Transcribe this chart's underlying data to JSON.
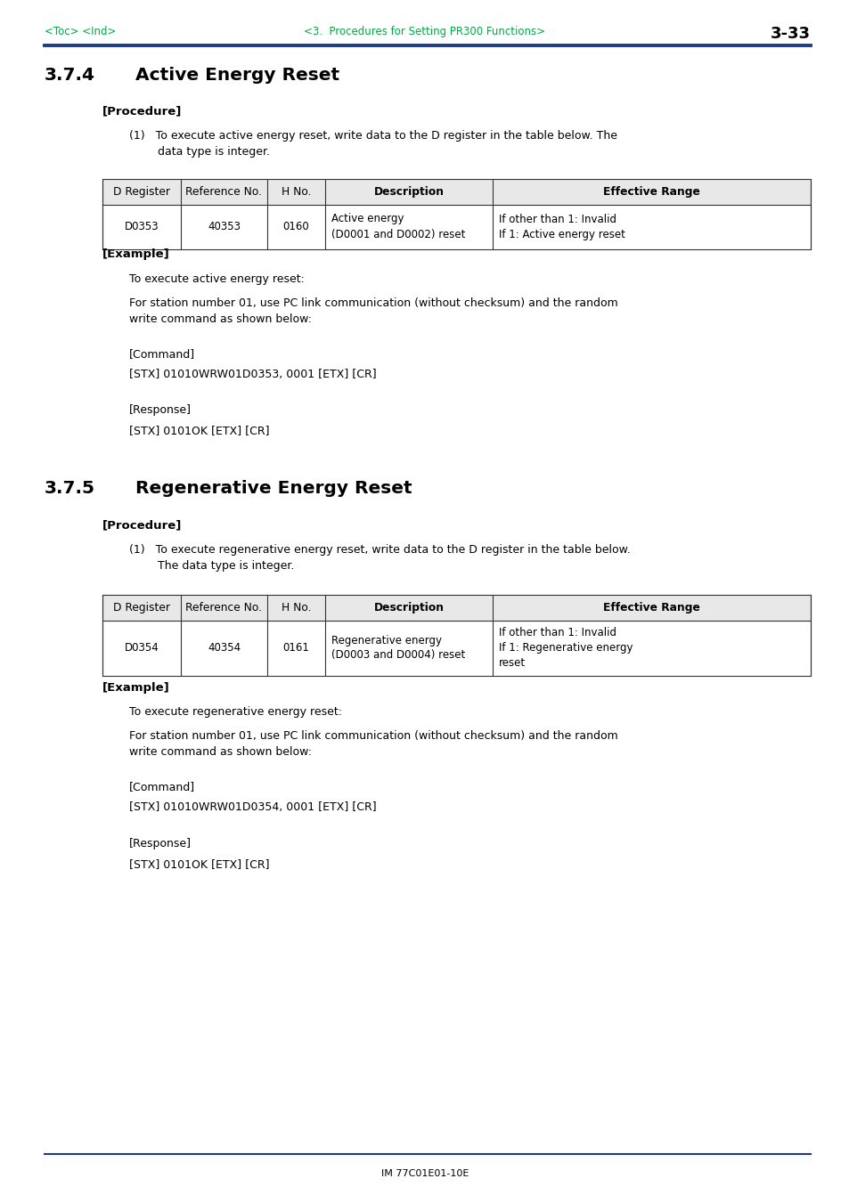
{
  "page_bg": "#ffffff",
  "header_line_color": "#1e3a8a",
  "header_text_color": "#00aa44",
  "header_left": "<Toc> <Ind>",
  "header_center": "<3.  Procedures for Setting PR300 Functions>",
  "header_right": "3-33",
  "footer_line_color": "#1e3a8a",
  "footer_text": "IM 77C01E01-10E",
  "section1_number": "3.7.4",
  "section1_title": "Active Energy Reset",
  "section1_procedure_label": "[Procedure]",
  "table1_headers": [
    "D Register",
    "Reference No.",
    "H No.",
    "Description",
    "Effective Range"
  ],
  "table1_row": [
    "D0353",
    "40353",
    "0160",
    "Active energy\n(D0001 and D0002) reset",
    "If other than 1: Invalid\nIf 1: Active energy reset"
  ],
  "section1_example_label": "[Example]",
  "section1_example_line1": "To execute active energy reset:",
  "section1_example_line2": "For station number 01, use PC link communication (without checksum) and the random\nwrite command as shown below:",
  "section1_command_label": "[Command]",
  "section1_command": "[STX] 01010WRW01D0353, 0001 [ETX] [CR]",
  "section1_response_label": "[Response]",
  "section1_response": "[STX] 0101OK [ETX] [CR]",
  "section2_number": "3.7.5",
  "section2_title": "Regenerative Energy Reset",
  "section2_procedure_label": "[Procedure]",
  "table2_headers": [
    "D Register",
    "Reference No.",
    "H No.",
    "Description",
    "Effective Range"
  ],
  "table2_row": [
    "D0354",
    "40354",
    "0161",
    "Regenerative energy\n(D0003 and D0004) reset",
    "If other than 1: Invalid\nIf 1: Regenerative energy\nreset"
  ],
  "section2_example_label": "[Example]",
  "section2_example_line1": "To execute regenerative energy reset:",
  "section2_example_line2": "For station number 01, use PC link communication (without checksum) and the random\nwrite command as shown below:",
  "section2_command_label": "[Command]",
  "section2_command": "[STX] 01010WRW01D0354, 0001 [ETX] [CR]",
  "section2_response_label": "[Response]",
  "section2_response": "[STX] 0101OK [ETX] [CR]"
}
